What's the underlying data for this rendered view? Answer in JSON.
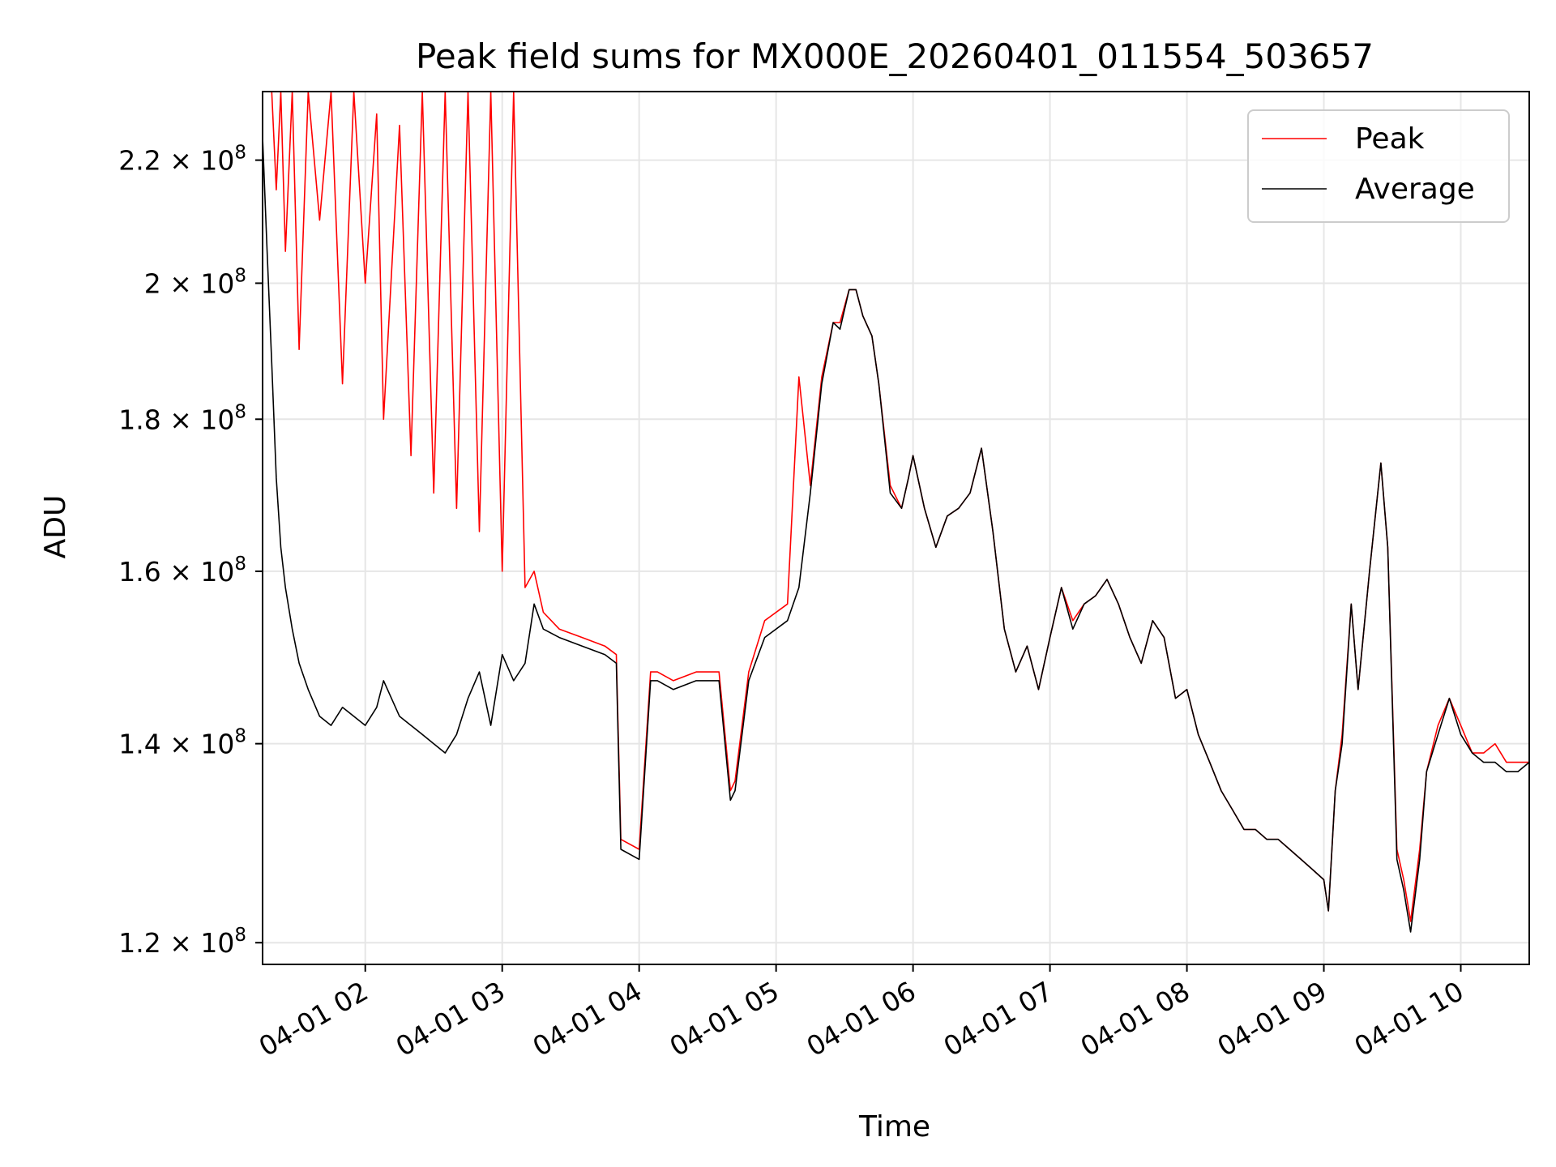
{
  "chart_data": {
    "type": "line",
    "title": "Peak field sums for MX000E_20260401_011554_503657",
    "xlabel": "Time",
    "ylabel": "ADU",
    "yscale": "log",
    "x_axis_type": "datetime",
    "xlim": [
      "2026-04-01 01:15",
      "2026-04-01 10:30"
    ],
    "ylim": [
      118000000,
      232000000
    ],
    "grid": true,
    "legend_position": "top-right",
    "x_ticks": [
      {
        "value": "2026-04-01 02:00",
        "label": "04-01 02"
      },
      {
        "value": "2026-04-01 03:00",
        "label": "04-01 03"
      },
      {
        "value": "2026-04-01 04:00",
        "label": "04-01 04"
      },
      {
        "value": "2026-04-01 05:00",
        "label": "04-01 05"
      },
      {
        "value": "2026-04-01 06:00",
        "label": "04-01 06"
      },
      {
        "value": "2026-04-01 07:00",
        "label": "04-01 07"
      },
      {
        "value": "2026-04-01 08:00",
        "label": "04-01 08"
      },
      {
        "value": "2026-04-01 09:00",
        "label": "04-01 09"
      },
      {
        "value": "2026-04-01 10:00",
        "label": "04-01 10"
      }
    ],
    "y_ticks": [
      {
        "value": 120000000,
        "mantissa": "1.2",
        "exponent": "8"
      },
      {
        "value": 140000000,
        "mantissa": "1.4",
        "exponent": "8"
      },
      {
        "value": 160000000,
        "mantissa": "1.6",
        "exponent": "8"
      },
      {
        "value": 180000000,
        "mantissa": "1.8",
        "exponent": "8"
      },
      {
        "value": 200000000,
        "mantissa": "2",
        "exponent": "8"
      },
      {
        "value": 220000000,
        "mantissa": "2.2",
        "exponent": "8"
      }
    ],
    "series": [
      {
        "name": "Average",
        "color": "#000000",
        "x": [
          "2026-04-01 01:15",
          "2026-04-01 01:17",
          "2026-04-01 01:19",
          "2026-04-01 01:21",
          "2026-04-01 01:23",
          "2026-04-01 01:25",
          "2026-04-01 01:28",
          "2026-04-01 01:31",
          "2026-04-01 01:35",
          "2026-04-01 01:40",
          "2026-04-01 01:45",
          "2026-04-01 01:50",
          "2026-04-01 01:55",
          "2026-04-01 02:00",
          "2026-04-01 02:05",
          "2026-04-01 02:08",
          "2026-04-01 02:15",
          "2026-04-01 02:20",
          "2026-04-01 02:25",
          "2026-04-01 02:30",
          "2026-04-01 02:35",
          "2026-04-01 02:40",
          "2026-04-01 02:45",
          "2026-04-01 02:50",
          "2026-04-01 02:55",
          "2026-04-01 03:00",
          "2026-04-01 03:05",
          "2026-04-01 03:10",
          "2026-04-01 03:14",
          "2026-04-01 03:18",
          "2026-04-01 03:25",
          "2026-04-01 03:35",
          "2026-04-01 03:45",
          "2026-04-01 03:50",
          "2026-04-01 03:52",
          "2026-04-01 04:00",
          "2026-04-01 04:05",
          "2026-04-01 04:08",
          "2026-04-01 04:15",
          "2026-04-01 04:25",
          "2026-04-01 04:35",
          "2026-04-01 04:40",
          "2026-04-01 04:42",
          "2026-04-01 04:48",
          "2026-04-01 04:55",
          "2026-04-01 05:05",
          "2026-04-01 05:10",
          "2026-04-01 05:15",
          "2026-04-01 05:20",
          "2026-04-01 05:25",
          "2026-04-01 05:28",
          "2026-04-01 05:32",
          "2026-04-01 05:35",
          "2026-04-01 05:38",
          "2026-04-01 05:42",
          "2026-04-01 05:45",
          "2026-04-01 05:50",
          "2026-04-01 05:55",
          "2026-04-01 05:58",
          "2026-04-01 06:00",
          "2026-04-01 06:05",
          "2026-04-01 06:10",
          "2026-04-01 06:15",
          "2026-04-01 06:20",
          "2026-04-01 06:25",
          "2026-04-01 06:30",
          "2026-04-01 06:35",
          "2026-04-01 06:40",
          "2026-04-01 06:45",
          "2026-04-01 06:50",
          "2026-04-01 06:55",
          "2026-04-01 07:00",
          "2026-04-01 07:05",
          "2026-04-01 07:10",
          "2026-04-01 07:15",
          "2026-04-01 07:20",
          "2026-04-01 07:25",
          "2026-04-01 07:30",
          "2026-04-01 07:35",
          "2026-04-01 07:40",
          "2026-04-01 07:45",
          "2026-04-01 07:50",
          "2026-04-01 07:55",
          "2026-04-01 08:00",
          "2026-04-01 08:05",
          "2026-04-01 08:10",
          "2026-04-01 08:15",
          "2026-04-01 08:20",
          "2026-04-01 08:25",
          "2026-04-01 08:30",
          "2026-04-01 08:35",
          "2026-04-01 08:40",
          "2026-04-01 08:45",
          "2026-04-01 08:50",
          "2026-04-01 08:55",
          "2026-04-01 09:00",
          "2026-04-01 09:02",
          "2026-04-01 09:05",
          "2026-04-01 09:08",
          "2026-04-01 09:12",
          "2026-04-01 09:15",
          "2026-04-01 09:20",
          "2026-04-01 09:25",
          "2026-04-01 09:28",
          "2026-04-01 09:32",
          "2026-04-01 09:35",
          "2026-04-01 09:38",
          "2026-04-01 09:42",
          "2026-04-01 09:45",
          "2026-04-01 09:50",
          "2026-04-01 09:55",
          "2026-04-01 10:00",
          "2026-04-01 10:05",
          "2026-04-01 10:10",
          "2026-04-01 10:15",
          "2026-04-01 10:20",
          "2026-04-01 10:25",
          "2026-04-01 10:30"
        ],
        "y": [
          224000000,
          205000000,
          188000000,
          172000000,
          163000000,
          158000000,
          153000000,
          149000000,
          146000000,
          143000000,
          142000000,
          144000000,
          143000000,
          142000000,
          144000000,
          147000000,
          143000000,
          142000000,
          141000000,
          140000000,
          139000000,
          141000000,
          145000000,
          148000000,
          142000000,
          150000000,
          147000000,
          149000000,
          156000000,
          153000000,
          152000000,
          151000000,
          150000000,
          149000000,
          129000000,
          128000000,
          147000000,
          147000000,
          146000000,
          147000000,
          147000000,
          134000000,
          135000000,
          147000000,
          152000000,
          154000000,
          158000000,
          170000000,
          185000000,
          194000000,
          193000000,
          199000000,
          199000000,
          195000000,
          192000000,
          185000000,
          170000000,
          168000000,
          172000000,
          175000000,
          168000000,
          163000000,
          167000000,
          168000000,
          170000000,
          176000000,
          165000000,
          153000000,
          148000000,
          151000000,
          146000000,
          152000000,
          158000000,
          153000000,
          156000000,
          157000000,
          159000000,
          156000000,
          152000000,
          149000000,
          154000000,
          152000000,
          145000000,
          146000000,
          141000000,
          138000000,
          135000000,
          133000000,
          131000000,
          131000000,
          130000000,
          130000000,
          129000000,
          128000000,
          127000000,
          126000000,
          123000000,
          135000000,
          140000000,
          156000000,
          146000000,
          160000000,
          174000000,
          163000000,
          128000000,
          125000000,
          121000000,
          128000000,
          137000000,
          141000000,
          145000000,
          141000000,
          139000000,
          138000000,
          138000000,
          137000000,
          137000000,
          138000000
        ]
      },
      {
        "name": "Peak",
        "color": "#ff0000",
        "x": [
          "2026-04-01 01:15",
          "2026-04-01 01:17",
          "2026-04-01 01:19",
          "2026-04-01 01:21",
          "2026-04-01 01:23",
          "2026-04-01 01:25",
          "2026-04-01 01:28",
          "2026-04-01 01:31",
          "2026-04-01 01:35",
          "2026-04-01 01:40",
          "2026-04-01 01:45",
          "2026-04-01 01:50",
          "2026-04-01 01:55",
          "2026-04-01 02:00",
          "2026-04-01 02:05",
          "2026-04-01 02:08",
          "2026-04-01 02:15",
          "2026-04-01 02:20",
          "2026-04-01 02:25",
          "2026-04-01 02:30",
          "2026-04-01 02:35",
          "2026-04-01 02:40",
          "2026-04-01 02:45",
          "2026-04-01 02:50",
          "2026-04-01 02:55",
          "2026-04-01 03:00",
          "2026-04-01 03:05",
          "2026-04-01 03:10",
          "2026-04-01 03:14",
          "2026-04-01 03:18",
          "2026-04-01 03:25",
          "2026-04-01 03:35",
          "2026-04-01 03:45",
          "2026-04-01 03:50",
          "2026-04-01 03:52",
          "2026-04-01 04:00",
          "2026-04-01 04:05",
          "2026-04-01 04:08",
          "2026-04-01 04:15",
          "2026-04-01 04:25",
          "2026-04-01 04:35",
          "2026-04-01 04:40",
          "2026-04-01 04:42",
          "2026-04-01 04:48",
          "2026-04-01 04:55",
          "2026-04-01 05:05",
          "2026-04-01 05:10",
          "2026-04-01 05:15",
          "2026-04-01 05:20",
          "2026-04-01 05:25",
          "2026-04-01 05:28",
          "2026-04-01 05:32",
          "2026-04-01 05:35",
          "2026-04-01 05:38",
          "2026-04-01 05:42",
          "2026-04-01 05:45",
          "2026-04-01 05:50",
          "2026-04-01 05:55",
          "2026-04-01 05:58",
          "2026-04-01 06:00",
          "2026-04-01 06:05",
          "2026-04-01 06:10",
          "2026-04-01 06:15",
          "2026-04-01 06:20",
          "2026-04-01 06:25",
          "2026-04-01 06:30",
          "2026-04-01 06:35",
          "2026-04-01 06:40",
          "2026-04-01 06:45",
          "2026-04-01 06:50",
          "2026-04-01 06:55",
          "2026-04-01 07:00",
          "2026-04-01 07:05",
          "2026-04-01 07:10",
          "2026-04-01 07:15",
          "2026-04-01 07:20",
          "2026-04-01 07:25",
          "2026-04-01 07:30",
          "2026-04-01 07:35",
          "2026-04-01 07:40",
          "2026-04-01 07:45",
          "2026-04-01 07:50",
          "2026-04-01 07:55",
          "2026-04-01 08:00",
          "2026-04-01 08:05",
          "2026-04-01 08:10",
          "2026-04-01 08:15",
          "2026-04-01 08:20",
          "2026-04-01 08:25",
          "2026-04-01 08:30",
          "2026-04-01 08:35",
          "2026-04-01 08:40",
          "2026-04-01 08:45",
          "2026-04-01 08:50",
          "2026-04-01 08:55",
          "2026-04-01 09:00",
          "2026-04-01 09:02",
          "2026-04-01 09:05",
          "2026-04-01 09:08",
          "2026-04-01 09:12",
          "2026-04-01 09:15",
          "2026-04-01 09:20",
          "2026-04-01 09:25",
          "2026-04-01 09:28",
          "2026-04-01 09:32",
          "2026-04-01 09:35",
          "2026-04-01 09:38",
          "2026-04-01 09:42",
          "2026-04-01 09:45",
          "2026-04-01 09:50",
          "2026-04-01 09:55",
          "2026-04-01 10:00",
          "2026-04-01 10:05",
          "2026-04-01 10:10",
          "2026-04-01 10:15",
          "2026-04-01 10:20",
          "2026-04-01 10:25",
          "2026-04-01 10:30"
        ],
        "y": [
          232000000,
          232000000,
          232000000,
          215000000,
          232000000,
          205000000,
          232000000,
          190000000,
          232000000,
          210000000,
          232000000,
          185000000,
          232000000,
          200000000,
          228000000,
          180000000,
          226000000,
          175000000,
          232000000,
          170000000,
          232000000,
          168000000,
          232000000,
          165000000,
          232000000,
          160000000,
          232000000,
          158000000,
          160000000,
          155000000,
          153000000,
          152000000,
          151000000,
          150000000,
          130000000,
          129000000,
          148000000,
          148000000,
          147000000,
          148000000,
          148000000,
          135000000,
          136000000,
          148000000,
          154000000,
          156000000,
          186000000,
          171000000,
          186000000,
          194000000,
          194000000,
          199000000,
          199000000,
          195000000,
          192000000,
          185000000,
          171000000,
          168000000,
          172000000,
          175000000,
          168000000,
          163000000,
          167000000,
          168000000,
          170000000,
          176000000,
          165000000,
          153000000,
          148000000,
          151000000,
          146000000,
          152000000,
          158000000,
          154000000,
          156000000,
          157000000,
          159000000,
          156000000,
          152000000,
          149000000,
          154000000,
          152000000,
          145000000,
          146000000,
          141000000,
          138000000,
          135000000,
          133000000,
          131000000,
          131000000,
          130000000,
          130000000,
          129000000,
          128000000,
          127000000,
          126000000,
          123000000,
          135000000,
          141000000,
          156000000,
          146000000,
          160000000,
          174000000,
          163000000,
          129000000,
          126000000,
          122000000,
          129000000,
          137000000,
          142000000,
          145000000,
          142000000,
          139000000,
          139000000,
          140000000,
          138000000,
          138000000,
          138000000
        ]
      }
    ]
  }
}
